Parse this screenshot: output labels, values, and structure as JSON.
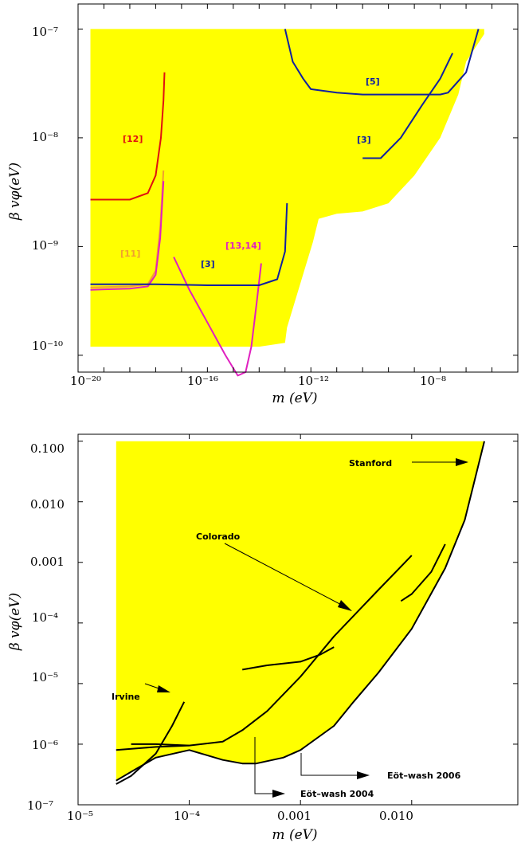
{
  "colors": {
    "fill": "#ffff00",
    "red": "#e01010",
    "orange": "#f0a030",
    "magenta": "#e020c0",
    "blue": "#1020a0",
    "black": "#000000"
  },
  "chart_data": [
    {
      "type": "area",
      "xscale": "log",
      "yscale": "log",
      "xlim": [
        1e-21,
        0.0001
      ],
      "ylim": [
        7e-11,
        1.7e-07
      ],
      "xlabel": "m (eV)",
      "ylabel": "β vφ(eV)",
      "xticks": [
        "10⁻²⁰",
        "10⁻¹⁶",
        "10⁻¹²",
        "10⁻⁸"
      ],
      "yticks": [
        "10⁻¹⁰",
        "10⁻⁹",
        "10⁻⁸",
        "10⁻⁷"
      ],
      "labels": {
        "l12": "[12]",
        "l11": "[11]",
        "l3a": "[3]",
        "l1314": "[13,14]",
        "l3b": "[3]",
        "l5": "[5]"
      },
      "excluded_region": {
        "x": [
          3e-21,
          3e-21,
          1e-17,
          1e-15,
          1e-14,
          1e-13,
          1.2e-13,
          1.2e-12,
          2e-12,
          1e-11,
          1e-10,
          1e-09,
          1e-08,
          1e-07,
          5e-07,
          1e-06,
          5e-06,
          5e-06
        ],
        "y": [
          1e-07,
          1.2e-10,
          1.2e-10,
          1.2e-10,
          1.2e-10,
          1.3e-10,
          1.8e-10,
          1.1e-09,
          1.8e-09,
          2e-09,
          2.1e-09,
          2.5e-09,
          4.5e-09,
          1e-08,
          2.5e-08,
          5e-08,
          9e-08,
          1e-07
        ]
      },
      "series": [
        {
          "key": "red",
          "name": "[12]",
          "x": [
            3e-21,
            1e-19,
            5e-19,
            1e-18,
            1.6e-18,
            2e-18,
            2.2e-18
          ],
          "y": [
            2.7e-09,
            2.7e-09,
            3.1e-09,
            4.5e-09,
            1e-08,
            2.2e-08,
            4e-08
          ]
        },
        {
          "key": "orange",
          "name": "[11]",
          "x": [
            3e-21,
            1e-19,
            5e-19,
            1e-18,
            1.5e-18,
            2e-18
          ],
          "y": [
            4.2e-10,
            4.3e-10,
            4.5e-10,
            6e-10,
            1.5e-09,
            5e-09
          ]
        },
        {
          "key": "magenta",
          "name": "[11]",
          "x": [
            3e-21,
            1e-19,
            5e-19,
            1e-18,
            1.5e-18,
            2e-18
          ],
          "y": [
            4e-10,
            4.1e-10,
            4.3e-10,
            5.5e-10,
            1.2e-09,
            4e-09
          ]
        },
        {
          "key": "magenta",
          "name": "[13,14]",
          "x": [
            5e-18,
            2e-17,
            1e-16,
            5e-16,
            1.5e-15,
            3e-15,
            5e-15,
            8e-15,
            1.2e-14
          ],
          "y": [
            8e-10,
            4e-10,
            2e-10,
            1e-10,
            6.5e-11,
            7e-11,
            1.2e-10,
            3e-10,
            7e-10
          ]
        },
        {
          "key": "blue",
          "name": "[3]",
          "x": [
            3e-21,
            1e-18,
            1e-16,
            1e-14,
            5e-14,
            1e-13,
            1.2e-13
          ],
          "y": [
            4.5e-10,
            4.5e-10,
            4.4e-10,
            4.4e-10,
            5e-10,
            9e-10,
            2.5e-09
          ]
        },
        {
          "key": "blue",
          "name": "[3]",
          "x": [
            1e-10,
            5e-10,
            3e-09,
            2e-08,
            1e-07,
            3e-07
          ],
          "y": [
            6.5e-09,
            6.5e-09,
            1e-08,
            2e-08,
            3.5e-08,
            6e-08
          ]
        },
        {
          "key": "blue",
          "name": "[5]",
          "x": [
            1e-13,
            2e-13,
            5e-13,
            1e-12,
            1e-11,
            1e-10,
            1e-09,
            1e-08,
            1e-07,
            2e-07,
            1e-06,
            3e-06
          ],
          "y": [
            1e-07,
            5e-08,
            3.5e-08,
            2.8e-08,
            2.6e-08,
            2.5e-08,
            2.5e-08,
            2.5e-08,
            2.5e-08,
            2.6e-08,
            4e-08,
            1e-07
          ]
        }
      ]
    },
    {
      "type": "area",
      "xscale": "log",
      "yscale": "log",
      "xlim": [
        1e-05,
        0.09
      ],
      "ylim": [
        1e-07,
        0.13
      ],
      "xlabel": "m (eV)",
      "ylabel": "β vφ(eV)",
      "xticks": [
        "10⁻⁵",
        "10⁻⁴",
        "0.001",
        "0.010"
      ],
      "yticks": [
        "10⁻⁷",
        "10⁻⁶",
        "10⁻⁵",
        "10⁻⁴",
        "0.001",
        "0.010",
        "0.100"
      ],
      "labels": {
        "stanford": "Stanford",
        "colorado": "Colorado",
        "irvine": "Irvine",
        "eotwash2004": "Eöt–wash 2004",
        "eotwash2006": "Eöt–wash 2006"
      },
      "excluded_region": {
        "x": [
          2.2e-05,
          2.2e-05,
          3e-05,
          5e-05,
          0.0001,
          0.0002,
          0.0003,
          0.0004,
          0.0007,
          0.001,
          0.002,
          0.003,
          0.005,
          0.01,
          0.02,
          0.03,
          0.045,
          0.045
        ],
        "y": [
          0.1,
          2.5e-07,
          3.5e-07,
          6e-07,
          8e-07,
          5.5e-07,
          4.8e-07,
          4.8e-07,
          6e-07,
          8e-07,
          2e-06,
          5e-06,
          1.5e-05,
          8e-05,
          0.0008,
          0.005,
          0.1,
          0.1
        ]
      },
      "series": [
        {
          "name": "Irvine",
          "x": [
            2.2e-05,
            3e-05,
            5e-05,
            7e-05,
            9e-05
          ],
          "y": [
            2.2e-07,
            3e-07,
            7e-07,
            2e-06,
            5e-06
          ]
        },
        {
          "name": "Eöt–wash 2004",
          "x": [
            2.2e-05,
            5e-05,
            0.0001,
            0.0002,
            0.0003,
            0.0005,
            0.001,
            0.002,
            0.005,
            0.01
          ],
          "y": [
            8e-07,
            9e-07,
            9.5e-07,
            1.1e-06,
            1.7e-06,
            3.5e-06,
            1.3e-05,
            6e-05,
            0.00035,
            0.0013
          ]
        },
        {
          "name": "Eöt–wash 2006",
          "x": [
            2.2e-05,
            3e-05,
            5e-05,
            0.0001,
            0.0002,
            0.0003,
            0.0004,
            0.0007,
            0.001,
            0.002,
            0.003,
            0.005,
            0.01,
            0.02,
            0.03,
            0.045
          ],
          "y": [
            2.5e-07,
            3.5e-07,
            6e-07,
            8e-07,
            5.5e-07,
            4.8e-07,
            4.8e-07,
            6e-07,
            8e-07,
            2e-06,
            5e-06,
            1.5e-05,
            8e-05,
            0.0008,
            0.005,
            0.1
          ]
        },
        {
          "name": "Colorado",
          "x": [
            0.0003,
            0.0005,
            0.001,
            0.0015,
            0.002
          ],
          "y": [
            1.7e-05,
            2e-05,
            2.3e-05,
            3e-05,
            4e-05
          ]
        },
        {
          "name": "Stanford",
          "x": [
            3e-05,
            5e-05,
            0.0001
          ],
          "y": [
            1e-06,
            1e-06,
            9.5e-07
          ]
        },
        {
          "name": "Colorado",
          "x": [
            0.008,
            0.01,
            0.015,
            0.02
          ],
          "y": [
            0.00023,
            0.0003,
            0.0007,
            0.002
          ]
        }
      ]
    }
  ]
}
